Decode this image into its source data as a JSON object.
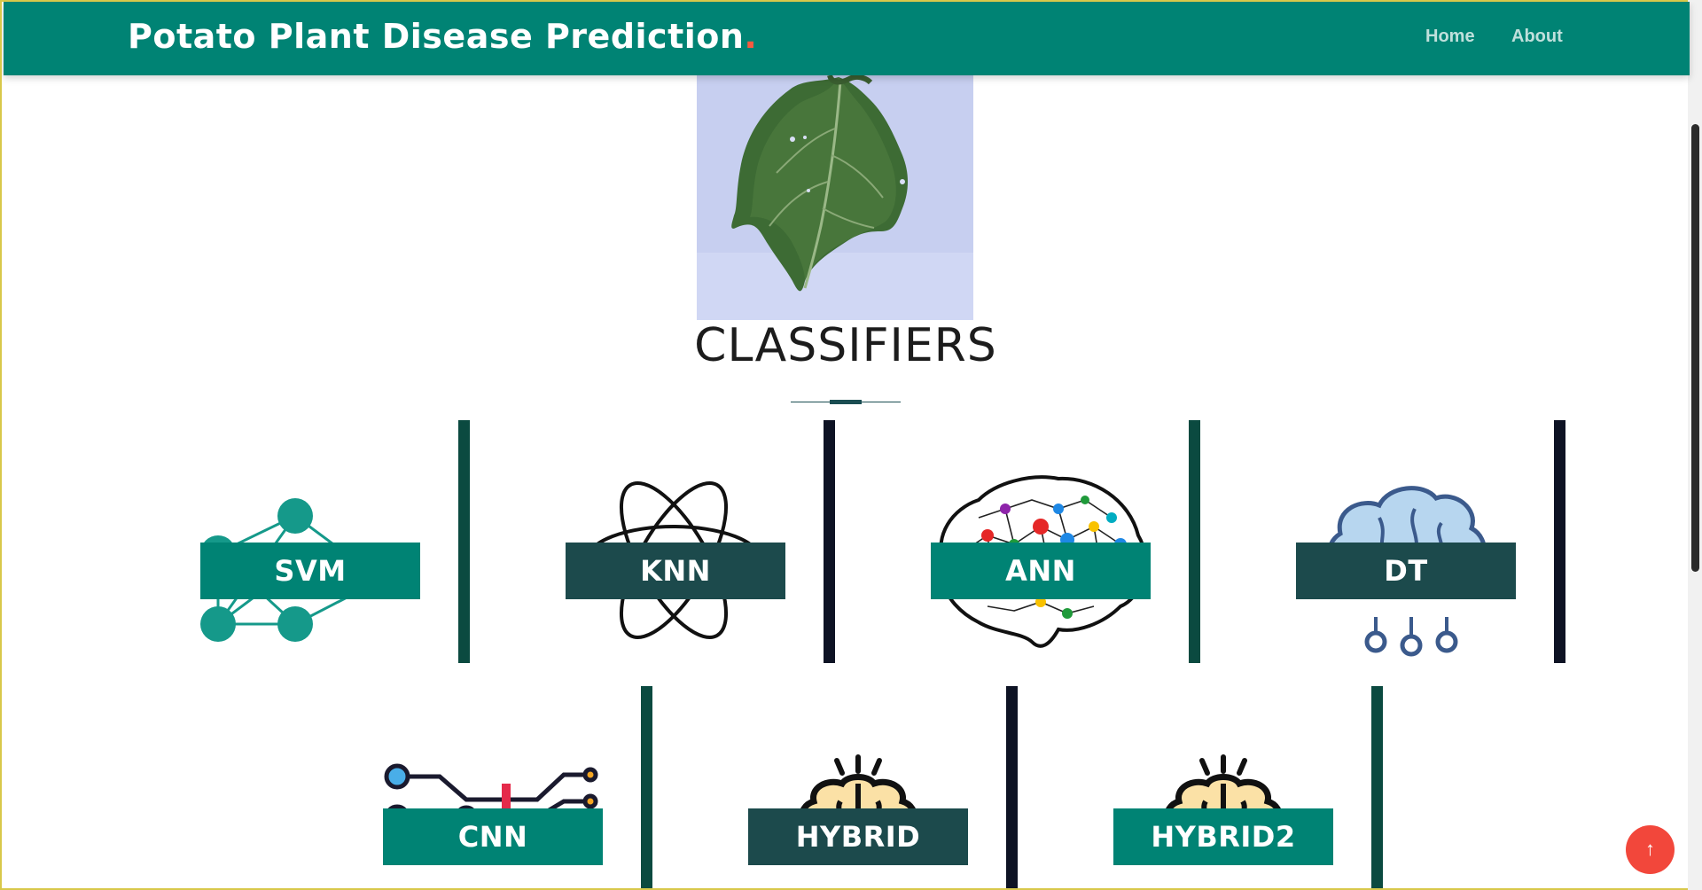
{
  "navbar": {
    "brand": "Potato Plant Disease Prediction",
    "brand_dot": ".",
    "links": [
      {
        "label": "Home"
      },
      {
        "label": "About"
      }
    ]
  },
  "main": {
    "section_title": "CLASSIFIERS",
    "classifiers": [
      {
        "label": "SVM",
        "icon": "neural-network-icon",
        "label_color": "#008374",
        "divider_color": "#0b4a40"
      },
      {
        "label": "KNN",
        "icon": "atom-icon",
        "label_color": "#1c4a4c",
        "divider_color": "#0e1324"
      },
      {
        "label": "ANN",
        "icon": "colorful-brain-network-icon",
        "label_color": "#008374",
        "divider_color": "#0b4a40"
      },
      {
        "label": "DT",
        "icon": "brain-circuit-icon",
        "label_color": "#1c4a4c",
        "divider_color": "#0e1324"
      },
      {
        "label": "CNN",
        "icon": "circuit-icon",
        "label_color": "#008374",
        "divider_color": "#0b4a40"
      },
      {
        "label": "HYBRID",
        "icon": "brain-idea-icon",
        "label_color": "#1c4a4c",
        "divider_color": "#0e1324"
      },
      {
        "label": "HYBRID2",
        "icon": "brain-idea-icon",
        "label_color": "#008374",
        "divider_color": "#0b4a40"
      }
    ]
  },
  "back_to_top": {
    "icon": "arrow-up-icon",
    "glyph": "↑"
  },
  "colors": {
    "brand": "#008374",
    "accent": "#f85a40",
    "back_to_top": "#f2473b"
  }
}
